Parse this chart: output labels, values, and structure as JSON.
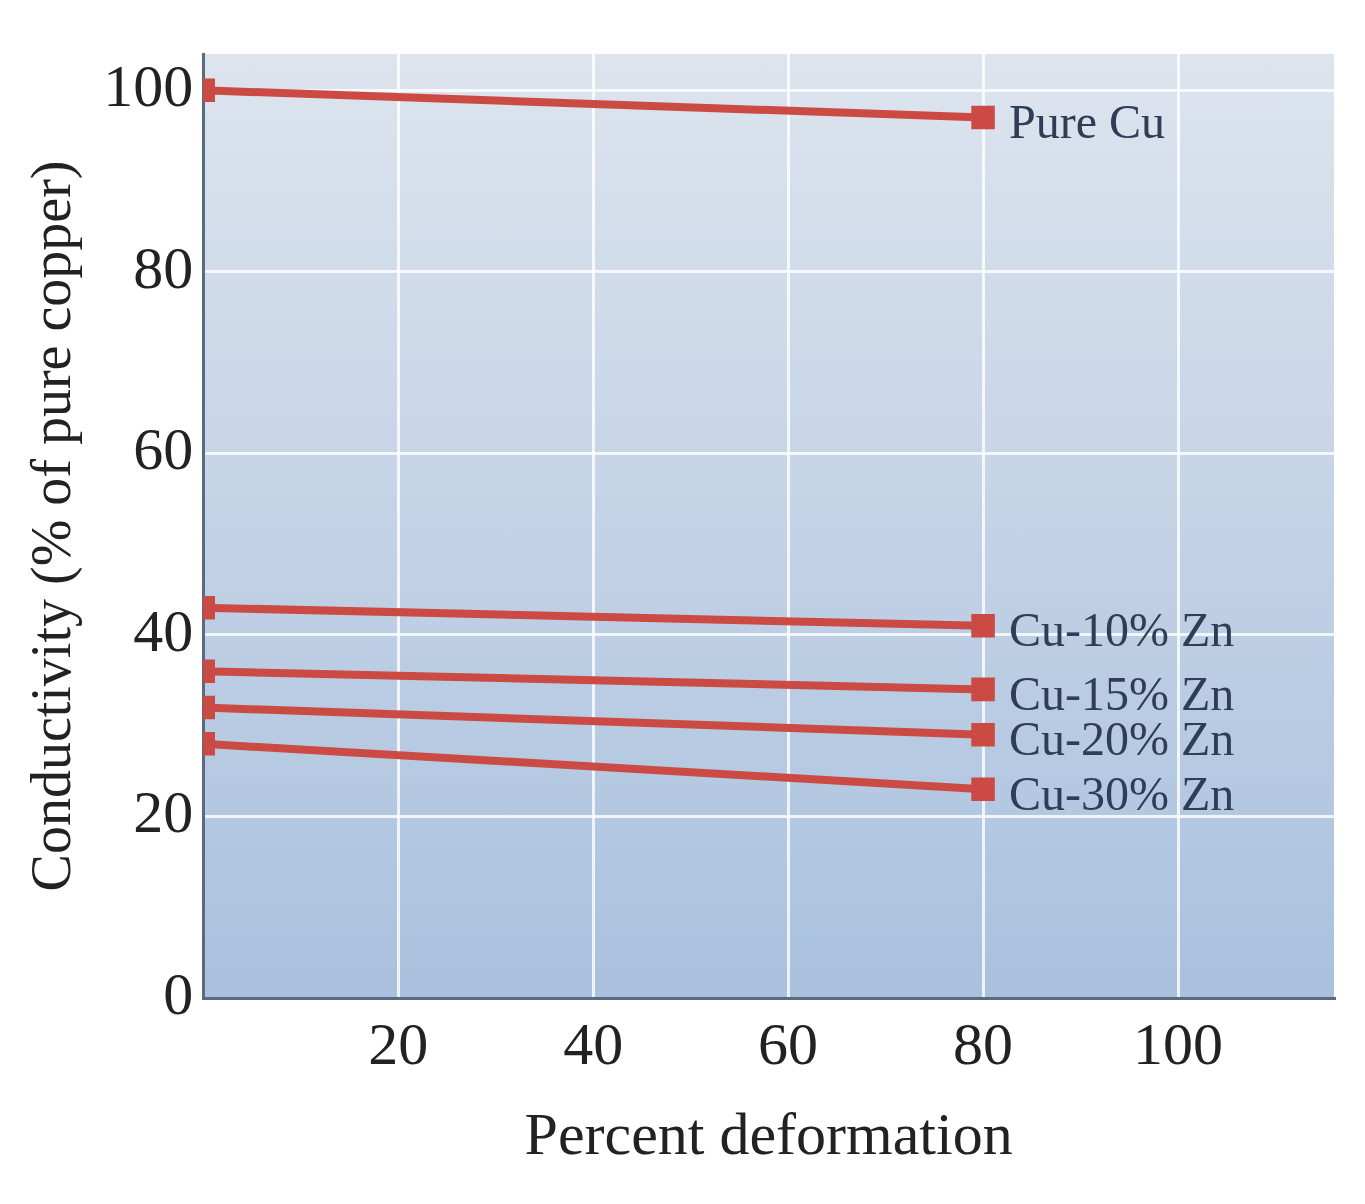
{
  "chart_data": {
    "type": "line",
    "xlabel": "Percent deformation",
    "ylabel": "Conductivity (% of pure copper)",
    "x": [
      0,
      80
    ],
    "series": [
      {
        "name": "Pure Cu",
        "color": "#cc4a44",
        "values": [
          100,
          97
        ]
      },
      {
        "name": "Cu-10% Zn",
        "color": "#cc4a44",
        "values": [
          43,
          41
        ]
      },
      {
        "name": "Cu-15% Zn",
        "color": "#cc4a44",
        "values": [
          36,
          34
        ]
      },
      {
        "name": "Cu-20% Zn",
        "color": "#cc4a44",
        "values": [
          32,
          29
        ]
      },
      {
        "name": "Cu-30% Zn",
        "color": "#cc4a44",
        "values": [
          28,
          23
        ]
      }
    ],
    "xlim": [
      0,
      116
    ],
    "xticks": [
      20,
      40,
      60,
      80,
      100
    ],
    "ylim": [
      0,
      104
    ],
    "yticks": [
      0,
      20,
      40,
      60,
      80,
      100
    ],
    "grid": true,
    "legend": false,
    "marker": "square",
    "line_style": "solid"
  }
}
